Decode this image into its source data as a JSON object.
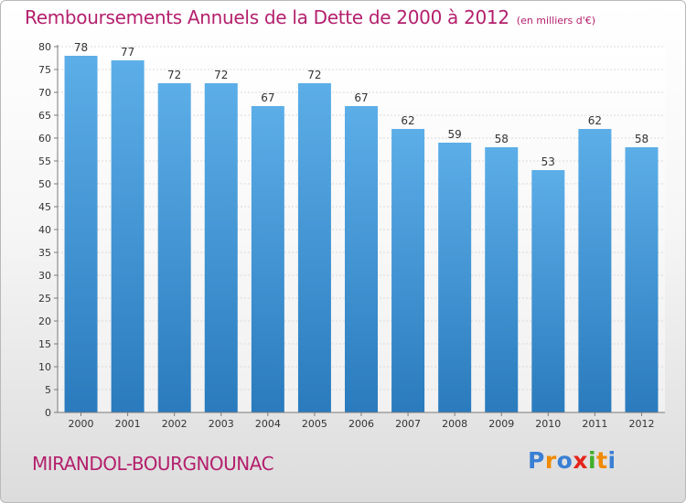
{
  "header": {
    "title": "Remboursements Annuels de la Dette de 2000 à 2012",
    "subtitle": "(en milliers d'€)"
  },
  "footer": {
    "commune": "MIRANDOL-BOURGNOUNAC",
    "logo_letters": [
      "P",
      "r",
      "o",
      "x",
      "i",
      "t",
      "i"
    ],
    "logo_colors": [
      "#3a7fd4",
      "#f08a00",
      "#3a7fd4",
      "#e4251b",
      "#3fae2a",
      "#f08a00",
      "#3a7fd4"
    ]
  },
  "chart_data": {
    "type": "bar",
    "title": "Remboursements Annuels de la Dette de 2000 à 2012",
    "categories": [
      "2000",
      "2001",
      "2002",
      "2003",
      "2004",
      "2005",
      "2006",
      "2007",
      "2008",
      "2009",
      "2010",
      "2011",
      "2012"
    ],
    "values": [
      78,
      77,
      72,
      72,
      67,
      72,
      67,
      62,
      59,
      58,
      53,
      62,
      58
    ],
    "data_labels": [
      "78",
      "77",
      "72",
      "72",
      "67",
      "72",
      "67",
      "62",
      "59",
      "58",
      "53",
      "62",
      "58"
    ],
    "ylim": [
      0,
      80
    ],
    "yticks": [
      "0",
      "5",
      "10",
      "15",
      "20",
      "25",
      "30",
      "35",
      "40",
      "45",
      "50",
      "55",
      "60",
      "65",
      "70",
      "75",
      "80"
    ],
    "grid": true,
    "colors": {
      "bar_top": "#5caee8",
      "bar_bottom": "#2a7bbd",
      "grid": "#d9d9d9",
      "axis": "#7a7a7a",
      "label": "#333333"
    }
  }
}
